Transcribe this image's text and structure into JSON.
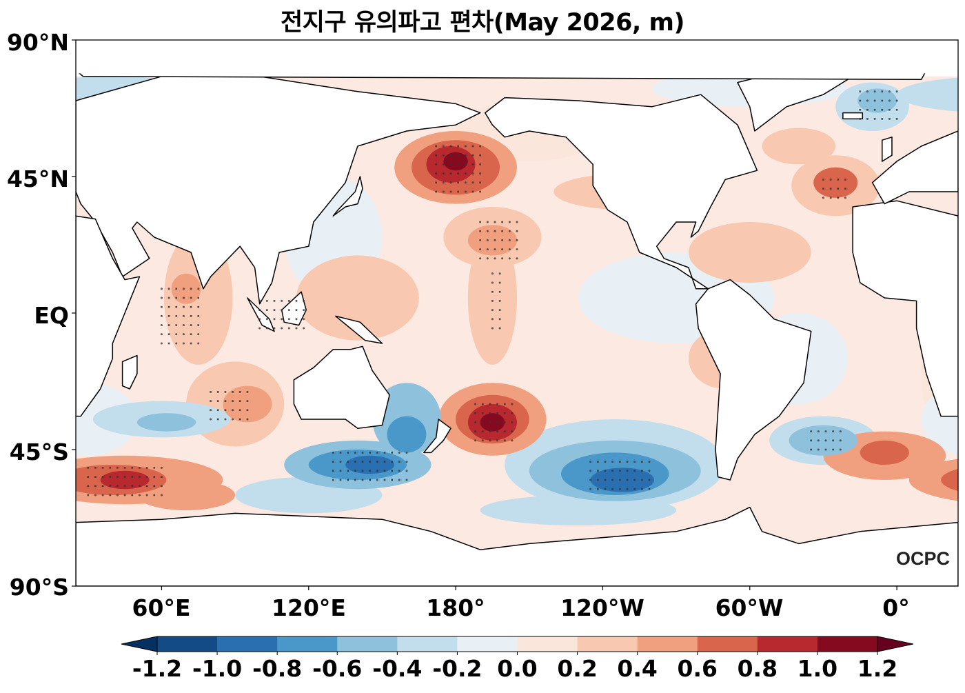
{
  "title": "전지구 유의파고 편차(May 2026, m)",
  "logo": "OCPC",
  "chart_data": {
    "type": "heatmap",
    "subtype": "filled-contour map",
    "title": "전지구 유의파고 편차(May 2026, m)",
    "variable": "Significant wave height anomaly",
    "units": "m",
    "period": "May 2026",
    "projection": "PlateCarree, central longitude 205°",
    "lon_range": [
      25,
      385
    ],
    "lat_range": [
      -90,
      90
    ],
    "y_ticks": [
      "90°N",
      "45°N",
      "EQ",
      "45°S",
      "90°S"
    ],
    "y_tick_values": [
      90,
      45,
      0,
      -45,
      -90
    ],
    "x_ticks": [
      "60°E",
      "120°E",
      "180°",
      "120°W",
      "60°W",
      "0°"
    ],
    "x_tick_values": [
      60,
      120,
      180,
      240,
      300,
      360
    ],
    "colorbar": {
      "levels": [
        -1.2,
        -1.0,
        -0.8,
        -0.6,
        -0.4,
        -0.2,
        0.0,
        0.2,
        0.4,
        0.6,
        0.8,
        1.0,
        1.2
      ],
      "labels": [
        "-1.2",
        "-1.0",
        "-0.8",
        "-0.6",
        "-0.4",
        "-0.2",
        "0.0",
        "0.2",
        "0.4",
        "0.6",
        "0.8",
        "1.0",
        "1.2"
      ],
      "colors": [
        "#134b87",
        "#2a70b0",
        "#4a98c9",
        "#8ec1dc",
        "#c2ddec",
        "#e9f0f5",
        "#fbe6dc",
        "#f9c8b0",
        "#f0a07e",
        "#d9654d",
        "#b8282f",
        "#850a20"
      ],
      "extend_under": "#053061",
      "extend_over": "#67001f",
      "extend": "both"
    },
    "stippling": "significant areas marked with dots",
    "features": [
      {
        "name": "North Pacific (Bering/Aleutian) positive anomaly",
        "lon": 180,
        "lat": 48,
        "value": 1.0
      },
      {
        "name": "Central Pacific positive anomaly",
        "lon": 195,
        "lat": 25,
        "value": 0.5
      },
      {
        "name": "South Pacific positive anomaly",
        "lon": 195,
        "lat": -35,
        "value": 1.1
      },
      {
        "name": "North Atlantic positive anomaly",
        "lon": 335,
        "lat": 43,
        "value": 0.7
      },
      {
        "name": "South Indian Ocean (SW) positive anomaly",
        "lon": 45,
        "lat": -55,
        "value": 0.9
      },
      {
        "name": "South of Africa positive anomaly",
        "lon": 355,
        "lat": -47,
        "value": 0.6
      },
      {
        "name": "Arabian Sea positive anomaly",
        "lon": 70,
        "lat": 8,
        "value": 0.6
      },
      {
        "name": "Southern Ocean south of Australia negative anomaly",
        "lon": 140,
        "lat": -48,
        "value": -0.9
      },
      {
        "name": "Tasman Sea negative anomaly",
        "lon": 160,
        "lat": -40,
        "value": -0.7
      },
      {
        "name": "SE Pacific negative anomaly",
        "lon": 245,
        "lat": -53,
        "value": -1.1
      },
      {
        "name": "South Atlantic negative anomaly",
        "lon": 330,
        "lat": -42,
        "value": -0.7
      },
      {
        "name": "Greenland/Labrador Sea negative anomaly",
        "lon": 355,
        "lat": 70,
        "value": -0.7
      },
      {
        "name": "South Indian Ocean negative anomaly",
        "lon": 55,
        "lat": -35,
        "value": -0.5
      }
    ]
  }
}
